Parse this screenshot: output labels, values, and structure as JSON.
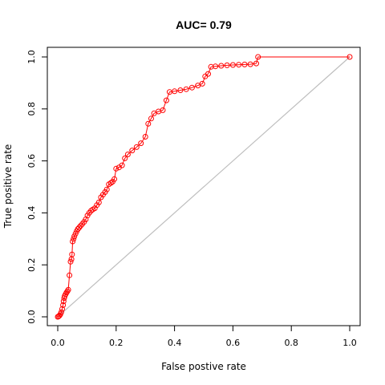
{
  "chart_data": {
    "type": "line",
    "title": "AUC= 0.79",
    "xlabel": "False postive rate",
    "ylabel": "True positive rate",
    "xlim": [
      0,
      1
    ],
    "ylim": [
      0,
      1
    ],
    "xticks": [
      "0.0",
      "0.2",
      "0.4",
      "0.6",
      "0.8",
      "1.0"
    ],
    "yticks": [
      "0.0",
      "0.2",
      "0.4",
      "0.6",
      "0.8",
      "1.0"
    ],
    "grid": false,
    "legend": "none",
    "series": [
      {
        "role": "roc",
        "color": "#ff0000",
        "marker": "open-circle",
        "x": [
          0.0,
          0.003,
          0.006,
          0.009,
          0.012,
          0.015,
          0.018,
          0.02,
          0.022,
          0.024,
          0.027,
          0.03,
          0.033,
          0.036,
          0.04,
          0.044,
          0.047,
          0.049,
          0.051,
          0.054,
          0.057,
          0.061,
          0.065,
          0.069,
          0.073,
          0.078,
          0.084,
          0.09,
          0.096,
          0.102,
          0.108,
          0.114,
          0.12,
          0.127,
          0.134,
          0.141,
          0.148,
          0.155,
          0.162,
          0.168,
          0.175,
          0.182,
          0.188,
          0.194,
          0.2,
          0.21,
          0.22,
          0.23,
          0.24,
          0.255,
          0.27,
          0.285,
          0.3,
          0.31,
          0.32,
          0.33,
          0.345,
          0.36,
          0.372,
          0.383,
          0.4,
          0.42,
          0.44,
          0.46,
          0.48,
          0.495,
          0.505,
          0.515,
          0.525,
          0.54,
          0.56,
          0.58,
          0.6,
          0.62,
          0.64,
          0.66,
          0.68,
          0.686,
          1.0
        ],
        "y": [
          0.0,
          0.002,
          0.005,
          0.01,
          0.018,
          0.03,
          0.045,
          0.06,
          0.072,
          0.08,
          0.087,
          0.093,
          0.098,
          0.104,
          0.16,
          0.212,
          0.222,
          0.24,
          0.29,
          0.3,
          0.31,
          0.32,
          0.33,
          0.338,
          0.343,
          0.35,
          0.357,
          0.365,
          0.375,
          0.39,
          0.4,
          0.408,
          0.413,
          0.418,
          0.43,
          0.44,
          0.46,
          0.47,
          0.48,
          0.49,
          0.51,
          0.515,
          0.52,
          0.53,
          0.57,
          0.575,
          0.583,
          0.61,
          0.625,
          0.64,
          0.653,
          0.668,
          0.693,
          0.743,
          0.763,
          0.783,
          0.79,
          0.795,
          0.833,
          0.865,
          0.868,
          0.872,
          0.876,
          0.882,
          0.89,
          0.897,
          0.925,
          0.935,
          0.962,
          0.964,
          0.966,
          0.968,
          0.969,
          0.97,
          0.971,
          0.972,
          0.975,
          1.0,
          1.0
        ]
      },
      {
        "role": "diagonal",
        "color": "#bebebe",
        "marker": "none",
        "x": [
          0,
          1
        ],
        "y": [
          0,
          1
        ]
      }
    ]
  }
}
